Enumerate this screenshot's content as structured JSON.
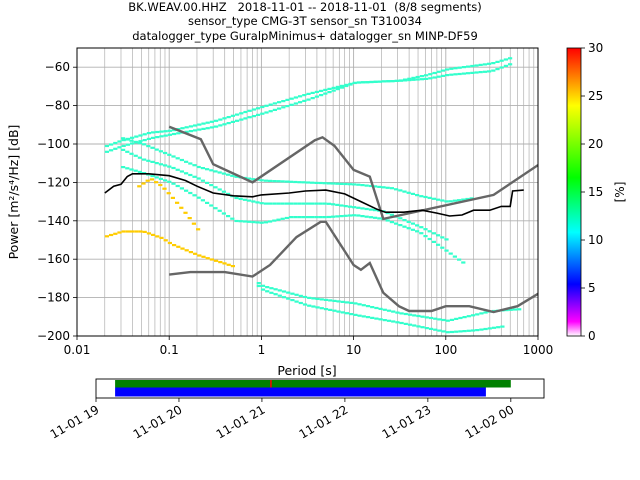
{
  "title": {
    "line1": "BK.WEAV.00.HHZ   2018-11-01 -- 2018-11-01  (8/8 segments)",
    "line2": "sensor_type CMG-3T sensor_sn T310034",
    "line3": "datalogger_type GuralpMinimus+ datalogger_sn MINP-DF59"
  },
  "chart_data": [
    {
      "type": "heatmap",
      "subtype": "probabilistic power spectral density",
      "xlabel": "Period [s]",
      "ylabel": "Power [m²/s⁴/Hz] [dB]",
      "xscale": "log",
      "xlim": [
        0.01,
        1000
      ],
      "ylim": [
        -200,
        -50
      ],
      "x_ticks": [
        "0.01",
        "0.1",
        "1",
        "10",
        "100",
        "1000"
      ],
      "y_ticks": [
        "−200",
        "−180",
        "−160",
        "−140",
        "−120",
        "−100",
        "−80",
        "−60"
      ],
      "grid": true,
      "colorbar": {
        "label": "[%]",
        "range": [
          0,
          30
        ],
        "ticks": [
          "0",
          "5",
          "10",
          "15",
          "20",
          "25",
          "30"
        ],
        "colormap": [
          "#ffffff",
          "#ff00ff",
          "#0000ff",
          "#00ffff",
          "#00ff00",
          "#ffff00",
          "#ff0000"
        ]
      },
      "noise_models": {
        "high": [
          [
            0.1,
            -91
          ],
          [
            0.22,
            -97.5
          ],
          [
            0.3,
            -110.5
          ],
          [
            0.8,
            -120
          ],
          [
            3.8,
            -98
          ],
          [
            4.6,
            -96.5
          ],
          [
            6.2,
            -101
          ],
          [
            10,
            -113.5
          ],
          [
            15,
            -117
          ],
          [
            21,
            -139
          ],
          [
            330,
            -126.5
          ],
          [
            1000,
            -111
          ]
        ],
        "low": [
          [
            0.1,
            -168
          ],
          [
            0.17,
            -166.7
          ],
          [
            0.4,
            -166.7
          ],
          [
            0.8,
            -169
          ],
          [
            1.24,
            -163
          ],
          [
            2.4,
            -148.5
          ],
          [
            4.4,
            -140.5
          ],
          [
            5,
            -140.5
          ],
          [
            10,
            -163
          ],
          [
            12,
            -165.5
          ],
          [
            15,
            -162
          ],
          [
            21,
            -177.5
          ],
          [
            31,
            -184.5
          ],
          [
            40,
            -187
          ],
          [
            70,
            -187
          ],
          [
            100,
            -184.5
          ],
          [
            180,
            -184.5
          ],
          [
            330,
            -187.5
          ],
          [
            600,
            -184.5
          ],
          [
            1000,
            -178
          ]
        ]
      },
      "mode_curve": [
        [
          0.02,
          -125.5
        ],
        [
          0.025,
          -122
        ],
        [
          0.03,
          -121
        ],
        [
          0.035,
          -117
        ],
        [
          0.04,
          -115.5
        ],
        [
          0.06,
          -115.5
        ],
        [
          0.1,
          -116.5
        ],
        [
          0.15,
          -119
        ],
        [
          0.2,
          -122
        ],
        [
          0.3,
          -125.5
        ],
        [
          0.5,
          -127
        ],
        [
          0.8,
          -127.5
        ],
        [
          1,
          -126.5
        ],
        [
          2,
          -125.5
        ],
        [
          3,
          -124.5
        ],
        [
          5,
          -124
        ],
        [
          8,
          -126
        ],
        [
          12,
          -130
        ],
        [
          18,
          -134
        ],
        [
          22,
          -135.5
        ],
        [
          35,
          -135.5
        ],
        [
          55,
          -134.5
        ],
        [
          80,
          -136
        ],
        [
          110,
          -137.5
        ],
        [
          150,
          -137
        ],
        [
          200,
          -134.5
        ],
        [
          300,
          -134.5
        ],
        [
          400,
          -132.5
        ],
        [
          500,
          -132.5
        ],
        [
          530,
          -124.5
        ],
        [
          700,
          -124
        ]
      ],
      "density_bands": [
        {
          "color": "#33ffcc",
          "points": [
            [
              0.02,
              -101
            ],
            [
              0.03,
              -98
            ],
            [
              0.06,
              -94
            ],
            [
              0.1,
              -93
            ],
            [
              0.3,
              -88
            ],
            [
              1,
              -80.5
            ],
            [
              3,
              -74
            ],
            [
              10,
              -68
            ],
            [
              30,
              -67
            ],
            [
              60,
              -64
            ],
            [
              100,
              -61
            ],
            [
              300,
              -58
            ],
            [
              500,
              -55
            ]
          ]
        },
        {
          "color": "#33ffcc",
          "points": [
            [
              0.02,
              -104
            ],
            [
              0.03,
              -101
            ],
            [
              0.06,
              -97
            ],
            [
              0.1,
              -95
            ],
            [
              0.3,
              -91
            ],
            [
              1,
              -84
            ],
            [
              3,
              -77
            ],
            [
              10,
              -68
            ],
            [
              30,
              -67
            ],
            [
              60,
              -66
            ],
            [
              100,
              -64
            ],
            [
              300,
              -62
            ],
            [
              500,
              -58
            ]
          ]
        },
        {
          "color": "#33ffcc",
          "points": [
            [
              0.03,
              -97
            ],
            [
              0.05,
              -100
            ],
            [
              0.1,
              -106
            ],
            [
              0.2,
              -112
            ],
            [
              0.5,
              -117
            ],
            [
              1,
              -119
            ],
            [
              3,
              -120
            ],
            [
              10,
              -121
            ],
            [
              25,
              -123
            ],
            [
              50,
              -127
            ],
            [
              100,
              -130
            ],
            [
              200,
              -128
            ]
          ]
        },
        {
          "color": "#33ffcc",
          "points": [
            [
              0.03,
              -103
            ],
            [
              0.05,
              -108
            ],
            [
              0.1,
              -112
            ],
            [
              0.2,
              -118
            ],
            [
              0.5,
              -128
            ],
            [
              1,
              -131
            ],
            [
              2,
              -131
            ],
            [
              5,
              -131
            ],
            [
              10,
              -133
            ],
            [
              20,
              -135
            ],
            [
              50,
              -143
            ],
            [
              100,
              -150
            ]
          ]
        },
        {
          "color": "#33ffcc",
          "points": [
            [
              0.03,
              -112
            ],
            [
              0.05,
              -115
            ],
            [
              0.1,
              -120
            ],
            [
              0.2,
              -128
            ],
            [
              0.5,
              -140
            ],
            [
              1,
              -141
            ],
            [
              2,
              -138
            ],
            [
              5,
              -138
            ],
            [
              10,
              -137
            ],
            [
              20,
              -139
            ],
            [
              50,
              -146
            ],
            [
              100,
              -156
            ],
            [
              150,
              -162
            ]
          ]
        },
        {
          "color": "#33ffcc",
          "points": [
            [
              0.8,
              -171
            ],
            [
              1,
              -174
            ],
            [
              3,
              -180
            ],
            [
              10,
              -183
            ],
            [
              30,
              -188
            ],
            [
              100,
              -192
            ],
            [
              300,
              -187
            ],
            [
              600,
              -186
            ]
          ]
        },
        {
          "color": "#33ffcc",
          "points": [
            [
              0.8,
              -172
            ],
            [
              1,
              -176
            ],
            [
              3,
              -184
            ],
            [
              10,
              -189
            ],
            [
              30,
              -193
            ],
            [
              100,
              -198
            ],
            [
              200,
              -197
            ],
            [
              400,
              -195
            ]
          ]
        },
        {
          "color": "#ffcc00",
          "points": [
            [
              0.02,
              -148
            ],
            [
              0.03,
              -145.5
            ],
            [
              0.05,
              -145.5
            ],
            [
              0.08,
              -149
            ],
            [
              0.1,
              -152
            ],
            [
              0.2,
              -158
            ],
            [
              0.5,
              -164
            ]
          ]
        },
        {
          "color": "#ffcc00",
          "points": [
            [
              0.045,
              -122
            ],
            [
              0.06,
              -118
            ],
            [
              0.08,
              -122
            ],
            [
              0.1,
              -127
            ],
            [
              0.15,
              -137
            ],
            [
              0.2,
              -145
            ]
          ]
        }
      ]
    },
    {
      "type": "bar",
      "subtype": "data availability timeline",
      "x_ticks": [
        "11-01 19",
        "11-01 20",
        "11-01 21",
        "11-01 22",
        "11-01 23",
        "11-02 00"
      ],
      "bars": [
        {
          "color": "#008000",
          "start": 19.23,
          "end": 24.0,
          "row": "top"
        },
        {
          "color": "#0000ff",
          "start": 19.23,
          "end": 23.7,
          "row": "bottom"
        }
      ],
      "gap_marker": {
        "color": "#ff0000",
        "at": 21.1
      }
    }
  ]
}
